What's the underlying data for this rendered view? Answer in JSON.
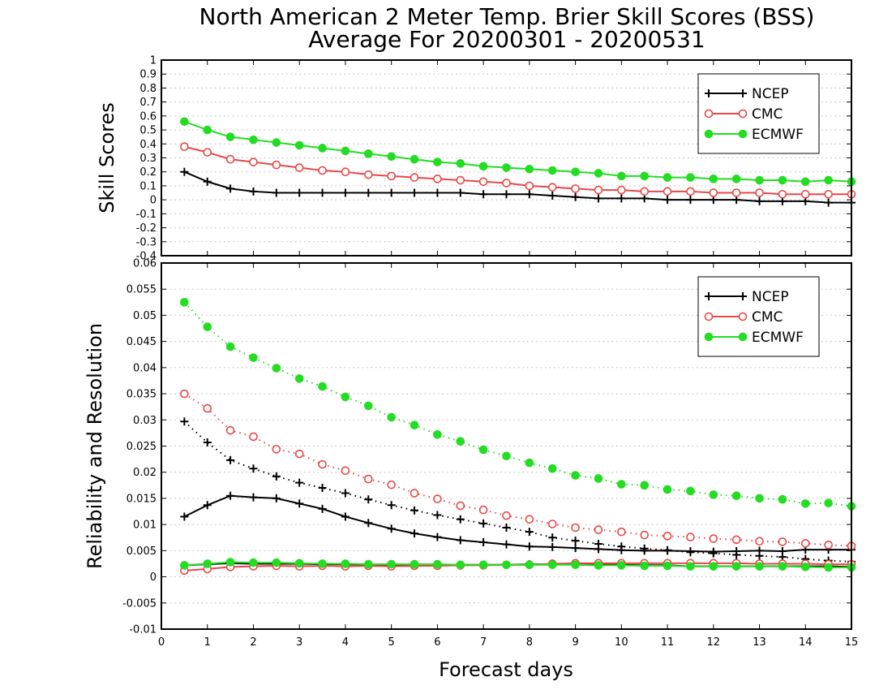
{
  "title": "North American 2 Meter Temp. Brier Skill Scores (BSS)",
  "subtitle": "Average For 20200301 - 20200531",
  "xlabel": "Forecast days",
  "colors": {
    "NCEP": "#000000",
    "CMC": "#e84848",
    "ECMWF": "#22dd22"
  },
  "chart_data": [
    {
      "type": "line",
      "ylabel": "Skill Scores",
      "xlim": [
        0,
        15
      ],
      "ylim": [
        -0.4,
        1
      ],
      "grid": true,
      "legend_position": "top-right",
      "x_ticks": [
        "0",
        "1",
        "2",
        "3",
        "4",
        "5",
        "6",
        "7",
        "8",
        "9",
        "10",
        "11",
        "12",
        "13",
        "14",
        "15"
      ],
      "y_ticks": [
        "-0.4",
        "-0.3",
        "-0.2",
        "-0.1",
        "0",
        "0.1",
        "0.2",
        "0.3",
        "0.4",
        "0.5",
        "0.6",
        "0.7",
        "0.8",
        "0.9",
        "1"
      ],
      "x": [
        0.5,
        1,
        1.5,
        2,
        2.5,
        3,
        3.5,
        4,
        4.5,
        5,
        5.5,
        6,
        6.5,
        7,
        7.5,
        8,
        8.5,
        9,
        9.5,
        10,
        10.5,
        11,
        11.5,
        12,
        12.5,
        13,
        13.5,
        14,
        14.5,
        15
      ],
      "series": [
        {
          "name": "NCEP",
          "marker": "plus",
          "style": "solid",
          "values": [
            0.2,
            0.13,
            0.08,
            0.06,
            0.05,
            0.05,
            0.05,
            0.05,
            0.05,
            0.05,
            0.05,
            0.05,
            0.05,
            0.04,
            0.04,
            0.04,
            0.03,
            0.02,
            0.01,
            0.01,
            0.01,
            0.0,
            0.0,
            0.0,
            0.0,
            -0.01,
            -0.01,
            -0.01,
            -0.02,
            -0.02
          ]
        },
        {
          "name": "CMC",
          "marker": "open-circle",
          "style": "solid",
          "values": [
            0.38,
            0.34,
            0.29,
            0.27,
            0.25,
            0.23,
            0.21,
            0.2,
            0.18,
            0.17,
            0.16,
            0.15,
            0.14,
            0.13,
            0.12,
            0.1,
            0.09,
            0.08,
            0.07,
            0.07,
            0.06,
            0.06,
            0.06,
            0.05,
            0.05,
            0.05,
            0.04,
            0.04,
            0.04,
            0.04
          ]
        },
        {
          "name": "ECMWF",
          "marker": "filled-circle",
          "style": "solid",
          "values": [
            0.56,
            0.5,
            0.45,
            0.43,
            0.41,
            0.39,
            0.37,
            0.35,
            0.33,
            0.31,
            0.29,
            0.27,
            0.26,
            0.24,
            0.23,
            0.22,
            0.21,
            0.2,
            0.19,
            0.17,
            0.17,
            0.16,
            0.16,
            0.15,
            0.15,
            0.14,
            0.14,
            0.13,
            0.14,
            0.13
          ]
        }
      ]
    },
    {
      "type": "line",
      "ylabel": "Reliability and Resolution",
      "xlim": [
        0,
        15
      ],
      "ylim": [
        -0.01,
        0.06
      ],
      "grid": true,
      "legend_position": "top-right",
      "x_ticks": [
        "0",
        "1",
        "2",
        "3",
        "4",
        "5",
        "6",
        "7",
        "8",
        "9",
        "10",
        "11",
        "12",
        "13",
        "14",
        "15"
      ],
      "y_ticks": [
        "-0.01",
        "-0.005",
        "0",
        "0.005",
        "0.01",
        "0.015",
        "0.02",
        "0.025",
        "0.03",
        "0.035",
        "0.04",
        "0.045",
        "0.05",
        "0.055",
        "0.06"
      ],
      "x": [
        0.5,
        1,
        1.5,
        2,
        2.5,
        3,
        3.5,
        4,
        4.5,
        5,
        5.5,
        6,
        6.5,
        7,
        7.5,
        8,
        8.5,
        9,
        9.5,
        10,
        10.5,
        11,
        11.5,
        12,
        12.5,
        13,
        13.5,
        14,
        14.5,
        15
      ],
      "series": [
        {
          "name": "NCEP",
          "marker": "plus",
          "style": "solid",
          "legend": true,
          "values": [
            0.0115,
            0.0137,
            0.0155,
            0.0152,
            0.015,
            0.014,
            0.013,
            0.0115,
            0.0103,
            0.0092,
            0.0083,
            0.0076,
            0.007,
            0.0066,
            0.0062,
            0.0058,
            0.0057,
            0.0055,
            0.0053,
            0.0051,
            0.005,
            0.005,
            0.0049,
            0.0048,
            0.0049,
            0.005,
            0.0049,
            0.0052,
            0.0052,
            0.0052
          ]
        },
        {
          "name": "NCEP",
          "marker": "plus",
          "style": "dotted",
          "legend": false,
          "values": [
            0.0297,
            0.0257,
            0.0223,
            0.0207,
            0.0192,
            0.018,
            0.017,
            0.016,
            0.0148,
            0.0137,
            0.0127,
            0.0118,
            0.011,
            0.0102,
            0.0094,
            0.0086,
            0.0075,
            0.0069,
            0.0063,
            0.0058,
            0.0054,
            0.0051,
            0.0047,
            0.0045,
            0.0042,
            0.004,
            0.0038,
            0.0034,
            0.0031,
            0.0029
          ]
        },
        {
          "name": "NCEP",
          "marker": "plus",
          "style": "solid",
          "legend": false,
          "values": [
            0.0022,
            0.0024,
            0.0026,
            0.0025,
            0.0025,
            0.0025,
            0.0024,
            0.0024,
            0.0023,
            0.0023,
            0.0023,
            0.0022,
            0.0023,
            0.0023,
            0.0023,
            0.0024,
            0.0024,
            0.0024,
            0.0024,
            0.0023,
            0.0022,
            0.0022,
            0.002,
            0.002,
            0.002,
            0.002,
            0.002,
            0.002,
            0.002,
            0.0019
          ]
        },
        {
          "name": "CMC",
          "marker": "open-circle",
          "style": "solid",
          "legend": true,
          "values": [
            0.0012,
            0.0015,
            0.0019,
            0.002,
            0.0021,
            0.002,
            0.0021,
            0.002,
            0.0021,
            0.002,
            0.0021,
            0.0021,
            0.0022,
            0.0022,
            0.0023,
            0.0023,
            0.0025,
            0.0026,
            0.0026,
            0.0026,
            0.0026,
            0.0026,
            0.0026,
            0.0026,
            0.0026,
            0.0025,
            0.0025,
            0.0025,
            0.0024,
            0.0024
          ]
        },
        {
          "name": "CMC",
          "marker": "open-circle",
          "style": "dotted",
          "legend": false,
          "values": [
            0.035,
            0.0322,
            0.028,
            0.0268,
            0.0244,
            0.0235,
            0.0215,
            0.0203,
            0.0187,
            0.0176,
            0.016,
            0.0149,
            0.0136,
            0.0128,
            0.0117,
            0.011,
            0.0101,
            0.0094,
            0.009,
            0.0086,
            0.008,
            0.0078,
            0.0076,
            0.0073,
            0.0071,
            0.0068,
            0.0067,
            0.0064,
            0.0061,
            0.0059
          ]
        },
        {
          "name": "ECMWF",
          "marker": "filled-circle",
          "style": "solid",
          "legend": true,
          "values": [
            0.0022,
            0.0025,
            0.0028,
            0.0027,
            0.0027,
            0.0026,
            0.0025,
            0.0025,
            0.0024,
            0.0024,
            0.0024,
            0.0024,
            0.0023,
            0.0023,
            0.0023,
            0.0023,
            0.0023,
            0.0023,
            0.0022,
            0.0022,
            0.0021,
            0.0021,
            0.002,
            0.002,
            0.002,
            0.002,
            0.002,
            0.0019,
            0.0018,
            0.0018
          ]
        },
        {
          "name": "ECMWF",
          "marker": "filled-circle",
          "style": "dotted",
          "legend": false,
          "values": [
            0.0525,
            0.0478,
            0.044,
            0.0419,
            0.0399,
            0.0379,
            0.0364,
            0.0344,
            0.0327,
            0.0305,
            0.029,
            0.0272,
            0.0259,
            0.0243,
            0.0231,
            0.0218,
            0.0207,
            0.0194,
            0.0188,
            0.0177,
            0.0175,
            0.0167,
            0.0164,
            0.0157,
            0.0155,
            0.015,
            0.0148,
            0.014,
            0.0141,
            0.0135
          ]
        }
      ]
    }
  ]
}
